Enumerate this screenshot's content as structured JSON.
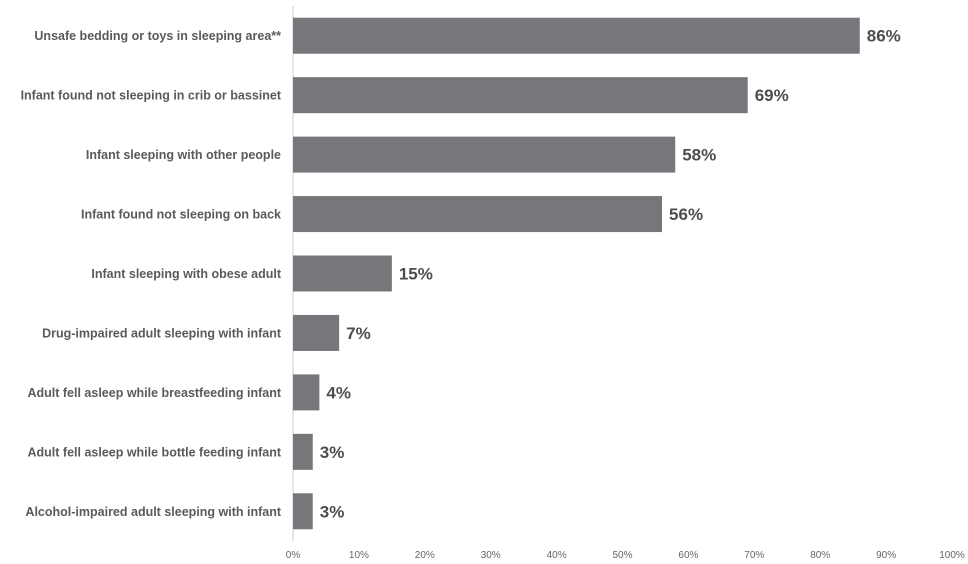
{
  "chart_data": {
    "type": "bar",
    "orientation": "horizontal",
    "categories": [
      "Unsafe bedding or toys in sleeping area**",
      "Infant found not sleeping in crib or bassinet",
      "Infant sleeping with other people",
      "Infant found not sleeping on back",
      "Infant sleeping with obese adult",
      "Drug-impaired adult sleeping with infant",
      "Adult fell asleep while breastfeeding infant",
      "Adult fell asleep while bottle feeding infant",
      "Alcohol-impaired adult sleeping with infant"
    ],
    "values": [
      86,
      69,
      58,
      56,
      15,
      7,
      4,
      3,
      3
    ],
    "data_labels": [
      "86%",
      "69%",
      "58%",
      "56%",
      "15%",
      "7%",
      "4%",
      "3%",
      "3%"
    ],
    "xlim": [
      0,
      100
    ],
    "x_ticks": [
      "0%",
      "10%",
      "20%",
      "30%",
      "40%",
      "50%",
      "60%",
      "70%",
      "80%",
      "90%",
      "100%"
    ],
    "grid": false,
    "bar_color": "#77777b"
  }
}
